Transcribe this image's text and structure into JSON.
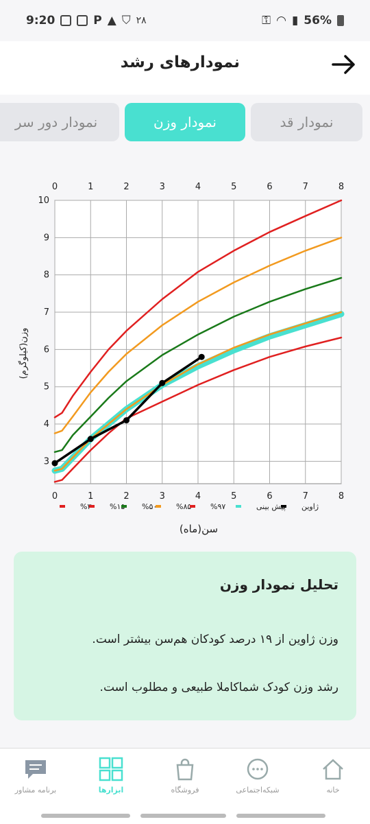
{
  "status": {
    "time": "9:20",
    "temp": "۲۸",
    "battery": "56%"
  },
  "header": {
    "title": "نمودارهای رشد"
  },
  "tabs": [
    {
      "label": "نمودار قد",
      "active": false
    },
    {
      "label": "نمودار وزن",
      "active": true
    },
    {
      "label": "نمودار دور سر",
      "active": false
    }
  ],
  "chart_data": {
    "type": "line",
    "ylabel": "وزن(کیلوگرم)",
    "xlabel": "سن(ماه)",
    "xlim": [
      0,
      8
    ],
    "ylim": [
      2.4,
      10
    ],
    "x_ticks": [
      0,
      1,
      2,
      3,
      4,
      5,
      6,
      7,
      8
    ],
    "y_ticks": [
      3,
      4,
      5,
      6,
      7,
      8,
      9,
      10
    ],
    "series": [
      {
        "name": "%۳",
        "color": "#e02020",
        "width": 2.5,
        "points": [
          [
            0,
            2.45
          ],
          [
            0.2,
            2.5
          ],
          [
            0.5,
            2.8
          ],
          [
            1,
            3.3
          ],
          [
            1.5,
            3.75
          ],
          [
            2,
            4.15
          ],
          [
            3,
            4.6
          ],
          [
            4,
            5.05
          ],
          [
            5,
            5.45
          ],
          [
            6,
            5.8
          ],
          [
            7,
            6.08
          ],
          [
            8,
            6.32
          ]
        ]
      },
      {
        "name": "%۱۵",
        "color": "#49e0d0",
        "width": 9,
        "points": [
          [
            0,
            2.75
          ],
          [
            0.2,
            2.8
          ],
          [
            0.5,
            3.1
          ],
          [
            1,
            3.6
          ],
          [
            1.5,
            4.0
          ],
          [
            2,
            4.4
          ],
          [
            3,
            5.05
          ],
          [
            4,
            5.55
          ],
          [
            5,
            5.98
          ],
          [
            6,
            6.35
          ],
          [
            7,
            6.65
          ],
          [
            8,
            6.95
          ]
        ]
      },
      {
        "name": "%۵۰",
        "color": "#f29a1f",
        "width": 2.5,
        "points": [
          [
            0,
            2.75
          ],
          [
            0.2,
            2.8
          ],
          [
            0.5,
            3.1
          ],
          [
            1,
            3.6
          ],
          [
            1.5,
            4.0
          ],
          [
            2,
            4.4
          ],
          [
            3,
            5.05
          ],
          [
            4,
            5.6
          ],
          [
            5,
            6.05
          ],
          [
            6,
            6.4
          ],
          [
            7,
            6.7
          ],
          [
            8,
            7.0
          ]
        ]
      },
      {
        "name": "%۸۵",
        "color": "#1a7a1a",
        "width": 2.5,
        "points": [
          [
            0,
            3.25
          ],
          [
            0.2,
            3.3
          ],
          [
            0.5,
            3.7
          ],
          [
            1,
            4.2
          ],
          [
            1.5,
            4.7
          ],
          [
            2,
            5.15
          ],
          [
            3,
            5.85
          ],
          [
            4,
            6.4
          ],
          [
            5,
            6.88
          ],
          [
            6,
            7.28
          ],
          [
            7,
            7.62
          ],
          [
            8,
            7.92
          ]
        ]
      },
      {
        "name": "%۹۷",
        "color": "#f29a1f",
        "width": 2.5,
        "points": [
          [
            0,
            3.75
          ],
          [
            0.2,
            3.82
          ],
          [
            0.5,
            4.2
          ],
          [
            1,
            4.85
          ],
          [
            1.5,
            5.4
          ],
          [
            2,
            5.88
          ],
          [
            3,
            6.65
          ],
          [
            4,
            7.28
          ],
          [
            5,
            7.8
          ],
          [
            6,
            8.25
          ],
          [
            7,
            8.65
          ],
          [
            8,
            9.0
          ]
        ]
      },
      {
        "name": "پیش بینی",
        "color": "#e02020",
        "width": 2.5,
        "points": [
          [
            0,
            4.18
          ],
          [
            0.2,
            4.3
          ],
          [
            0.5,
            4.75
          ],
          [
            1,
            5.4
          ],
          [
            1.5,
            6.0
          ],
          [
            2,
            6.5
          ],
          [
            3,
            7.35
          ],
          [
            4,
            8.08
          ],
          [
            5,
            8.65
          ],
          [
            6,
            9.15
          ],
          [
            7,
            9.58
          ],
          [
            8,
            10.0
          ]
        ]
      },
      {
        "name": "ژاوین",
        "color": "#000000",
        "width": 3.5,
        "markers": true,
        "points": [
          [
            0,
            2.95
          ],
          [
            1,
            3.6
          ],
          [
            2,
            4.1
          ],
          [
            3,
            5.1
          ],
          [
            4.1,
            5.8
          ]
        ]
      }
    ],
    "legend": [
      {
        "label": "%۳",
        "color": "#e02020"
      },
      {
        "label": "%۱۵",
        "color": "#e02020"
      },
      {
        "label": "%۵۰",
        "color": "#1a7a1a"
      },
      {
        "label": "%۸۵",
        "color": "#f29a1f"
      },
      {
        "label": "%۹۷",
        "color": "#e02020"
      },
      {
        "label": "پیش بینی",
        "color": "#49e0d0"
      },
      {
        "label": "ژاوین",
        "color": "#000000"
      }
    ]
  },
  "analysis": {
    "title": "تحلیل نمودار وزن",
    "line1": "وزن ژاوین از ۱۹ درصد کودکان هم‌سن بیشتر است.",
    "line2": "رشد وزن کودک شماکاملا طبیعی و مطلوب است."
  },
  "nav": [
    {
      "label": "خانه",
      "icon": "home-icon",
      "active": false
    },
    {
      "label": "شبکه‌اجتماعی",
      "icon": "chat-icon",
      "active": false
    },
    {
      "label": "فروشگاه",
      "icon": "shopping-bag-icon",
      "active": false
    },
    {
      "label": "ابزارها",
      "icon": "grid-icon",
      "active": true
    },
    {
      "label": "برنامه مشاور",
      "icon": "message-icon",
      "active": false
    }
  ]
}
